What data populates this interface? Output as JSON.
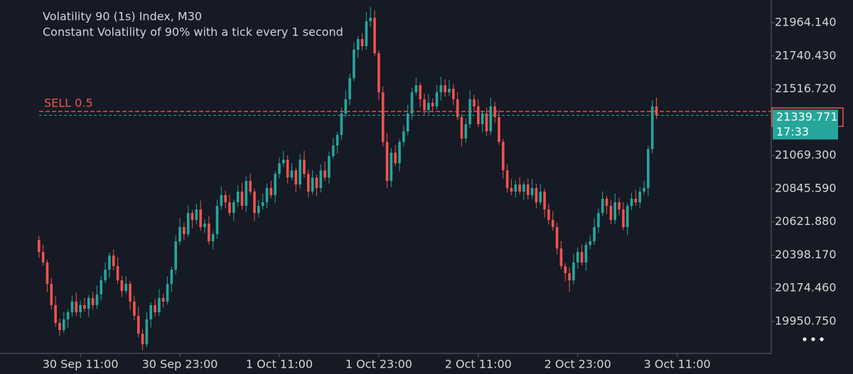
{
  "chart_data": {
    "type": "candlestick",
    "title": "Volatility 90 (1s) Index, M30",
    "subtitle": "Constant Volatility of 90% with a tick every 1 second",
    "up_color": "#26a69a",
    "down_color": "#ef5350",
    "open": [
      20500,
      20419,
      20348,
      20204,
      20061,
      19941,
      19893,
      19965,
      20013,
      20085,
      20013,
      20061,
      20037,
      20109,
      20061,
      20133,
      20228,
      20300,
      20395,
      20324,
      20228,
      20156,
      20204,
      20085,
      19989,
      19869,
      19797,
      19965,
      20061,
      20013,
      20109,
      20085,
      20204,
      20300,
      20491,
      20587,
      20539,
      20682,
      20635,
      20706,
      20587,
      20611,
      20491,
      20539,
      20730,
      20802,
      20754,
      20682,
      20754,
      20826,
      20730,
      20898,
      20826,
      20682,
      20730,
      20754,
      20850,
      20802,
      20945,
      21017,
      21041,
      20921,
      20969,
      20874,
      21041,
      20945,
      20826,
      20921,
      20850,
      20969,
      20921,
      21065,
      21137,
      21208,
      21352,
      21448,
      21591,
      21782,
      21854,
      21806,
      21974,
      21997,
      21758,
      21495,
      21161,
      20898,
      21089,
      21017,
      21161,
      21232,
      21352,
      21495,
      21543,
      21448,
      21376,
      21424,
      21400,
      21495,
      21543,
      21495,
      21519,
      21448,
      21328,
      21184,
      21280,
      21448,
      21400,
      21280,
      21352,
      21232,
      21400,
      21328,
      21161,
      20969,
      20850,
      20826,
      20874,
      20826,
      20874,
      20802,
      20850,
      20754,
      20826,
      20706,
      20635,
      20587,
      20443,
      20324,
      20276,
      20228,
      20348,
      20419,
      20348,
      20467,
      20491,
      20587,
      20682,
      20778,
      20730,
      20635,
      20754,
      20706,
      20587,
      20730,
      20778,
      20754,
      20826,
      20850,
      21113,
      21400
    ],
    "high": [
      20530,
      20469,
      20368,
      20244,
      20121,
      19971,
      20015,
      20033,
      20125,
      20145,
      20091,
      20111,
      20129,
      20149,
      20193,
      20258,
      20350,
      20415,
      20435,
      20384,
      20258,
      20254,
      20224,
      20125,
      20049,
      19899,
      20015,
      20081,
      20101,
      20169,
      20139,
      20254,
      20320,
      20531,
      20647,
      20617,
      20732,
      20702,
      20746,
      20766,
      20641,
      20661,
      20559,
      20770,
      20862,
      20832,
      20804,
      20774,
      20866,
      20886,
      20928,
      20948,
      20846,
      20770,
      20814,
      20880,
      20900,
      20965,
      21057,
      21101,
      21071,
      21019,
      20989,
      21081,
      21101,
      20975,
      20971,
      20941,
      21009,
      21029,
      21095,
      21187,
      21228,
      21392,
      21508,
      21621,
      21832,
      21874,
      21894,
      22034,
      22070,
      22047,
      21778,
      21535,
      21221,
      21119,
      21139,
      21181,
      21272,
      21412,
      21525,
      21593,
      21563,
      21488,
      21484,
      21454,
      21545,
      21600,
      21583,
      21579,
      21549,
      21498,
      21348,
      21320,
      21508,
      21478,
      21450,
      21372,
      21392,
      21460,
      21430,
      21378,
      21181,
      21009,
      20910,
      20904,
      20924,
      20894,
      20914,
      20910,
      20880,
      20876,
      20846,
      20746,
      20695,
      20617,
      20493,
      20344,
      20316,
      20408,
      20449,
      20469,
      20487,
      20531,
      20647,
      20712,
      20828,
      20798,
      20770,
      20814,
      20784,
      20756,
      20750,
      20818,
      20838,
      20856,
      20900,
      21133,
      21440,
      21460
    ],
    "low": [
      20379,
      20328,
      20149,
      20031,
      19916,
      19853,
      19873,
      19910,
      19983,
      19988,
      19973,
      20017,
      19982,
      20031,
      20036,
      20093,
      20208,
      20245,
      20294,
      20203,
      20116,
      20136,
      20030,
      19959,
      19844,
      19757,
      19777,
      19910,
      19983,
      19988,
      20045,
      20065,
      20149,
      20270,
      20466,
      20499,
      20519,
      20580,
      20605,
      20562,
      20547,
      20471,
      20436,
      20509,
      20705,
      20714,
      20662,
      20627,
      20724,
      20705,
      20690,
      20806,
      20627,
      20652,
      20705,
      20714,
      20782,
      20747,
      20915,
      20992,
      20881,
      20901,
      20819,
      20844,
      20920,
      20786,
      20806,
      20795,
      20820,
      20896,
      20881,
      21045,
      21082,
      21178,
      21327,
      21408,
      21571,
      21727,
      21776,
      21781,
      21934,
      21738,
      21440,
      21131,
      20850,
      20858,
      20997,
      20962,
      21131,
      21207,
      21312,
      21475,
      21393,
      21346,
      21351,
      21360,
      21380,
      21440,
      21465,
      21470,
      21408,
      21308,
      21129,
      21154,
      21255,
      21360,
      21260,
      21225,
      21202,
      21207,
      21288,
      21141,
      20914,
      20820,
      20801,
      20786,
      20806,
      20771,
      20772,
      20777,
      20714,
      20734,
      20651,
      20605,
      20562,
      20403,
      20304,
      20221,
      20150,
      20203,
      20308,
      20328,
      20293,
      20437,
      20466,
      20547,
      20662,
      20675,
      20605,
      20610,
      20666,
      20567,
      20532,
      20700,
      20729,
      20714,
      20806,
      20795,
      21083,
      21315
    ],
    "close": [
      20419,
      20348,
      20204,
      20061,
      19941,
      19893,
      19965,
      20013,
      20085,
      20013,
      20061,
      20037,
      20109,
      20061,
      20133,
      20228,
      20300,
      20395,
      20324,
      20228,
      20156,
      20204,
      20085,
      19989,
      19869,
      19797,
      19965,
      20061,
      20013,
      20109,
      20085,
      20204,
      20300,
      20491,
      20587,
      20539,
      20682,
      20635,
      20706,
      20587,
      20611,
      20491,
      20539,
      20730,
      20802,
      20754,
      20682,
      20754,
      20826,
      20730,
      20898,
      20826,
      20682,
      20730,
      20754,
      20850,
      20802,
      20945,
      21017,
      21041,
      20921,
      20969,
      20874,
      21041,
      20945,
      20826,
      20921,
      20850,
      20969,
      20921,
      21065,
      21137,
      21208,
      21352,
      21448,
      21591,
      21782,
      21854,
      21806,
      21974,
      21997,
      21758,
      21495,
      21161,
      20898,
      21089,
      21017,
      21161,
      21232,
      21352,
      21495,
      21543,
      21448,
      21376,
      21424,
      21400,
      21495,
      21543,
      21495,
      21519,
      21448,
      21328,
      21184,
      21280,
      21448,
      21400,
      21280,
      21352,
      21232,
      21400,
      21328,
      21161,
      20969,
      20850,
      20826,
      20874,
      20826,
      20874,
      20802,
      20850,
      20754,
      20826,
      20706,
      20635,
      20587,
      20443,
      20324,
      20276,
      20228,
      20348,
      20419,
      20348,
      20467,
      20491,
      20587,
      20682,
      20778,
      20730,
      20635,
      20754,
      20706,
      20587,
      20730,
      20778,
      20754,
      20826,
      20850,
      21113,
      21400,
      21339.771
    ],
    "ylim": [
      19735.5,
      22117.2
    ],
    "yticks": [
      {
        "value": 21964.14,
        "label": "21964.140"
      },
      {
        "value": 21740.43,
        "label": "21740.430"
      },
      {
        "value": 21516.72,
        "label": "21516.720"
      },
      {
        "value": 21069.3,
        "label": "21069.300"
      },
      {
        "value": 20845.59,
        "label": "20845.590"
      },
      {
        "value": 20621.88,
        "label": "20621.880"
      },
      {
        "value": 20398.17,
        "label": "20398.170"
      },
      {
        "value": 20174.46,
        "label": "20174.460"
      },
      {
        "value": 19950.75,
        "label": "19950.750"
      }
    ],
    "xlim": [
      -9.4,
      176.7
    ],
    "xticks": [
      {
        "value": 10,
        "label": "30 Sep 11:00"
      },
      {
        "value": 34,
        "label": "30 Sep 23:00"
      },
      {
        "value": 58,
        "label": "1 Oct 11:00"
      },
      {
        "value": 82,
        "label": "1 Oct 23:00"
      },
      {
        "value": 106,
        "label": "2 Oct 11:00"
      },
      {
        "value": 130,
        "label": "2 Oct 23:00"
      },
      {
        "value": 154,
        "label": "3 Oct 11:00"
      }
    ],
    "sell_order": {
      "label": "SELL 0.5",
      "price": 21366,
      "color": "#ef5350"
    },
    "last_price": {
      "value": 21339.771,
      "countdown": "17:33",
      "color": "#26a69a"
    }
  }
}
